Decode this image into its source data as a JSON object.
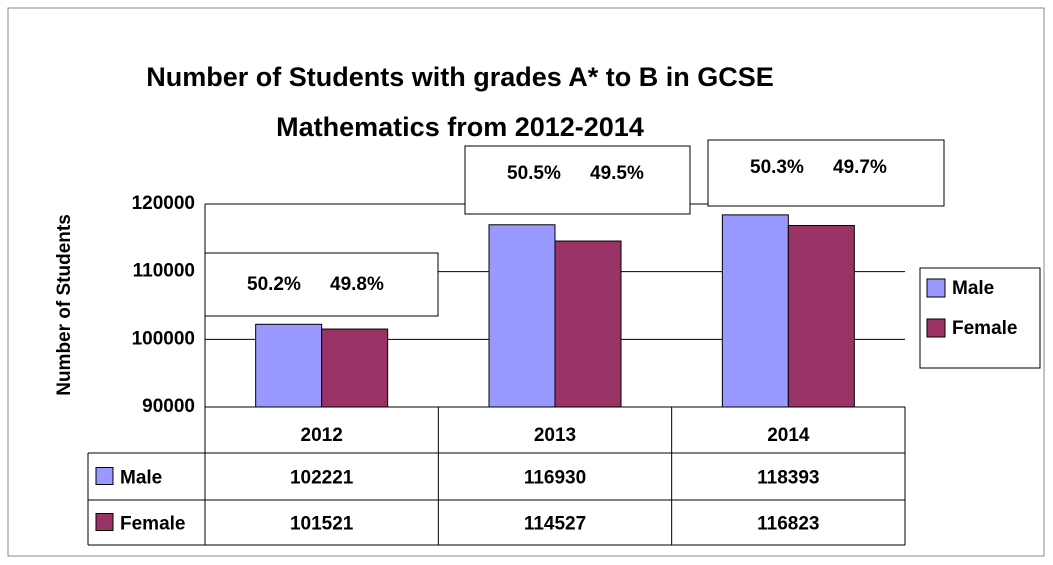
{
  "chart_data": {
    "type": "bar",
    "title": "Number of Students with grades A* to B in GCSE Mathematics from 2012-2014",
    "y_label": "Number of Students",
    "categories": [
      "2012",
      "2013",
      "2014"
    ],
    "series": [
      {
        "name": "Male",
        "color": "#9999ff",
        "values": [
          102221,
          116930,
          118393
        ]
      },
      {
        "name": "Female",
        "color": "#993366",
        "values": [
          101521,
          114527,
          116823
        ]
      }
    ],
    "ylim": [
      90000,
      120000
    ],
    "yticks": [
      90000,
      100000,
      110000,
      120000
    ],
    "grid": true,
    "legend": "right",
    "annotations": [
      [
        "50.2%",
        "49.8%"
      ],
      [
        "50.5%",
        "49.5%"
      ],
      [
        "50.3%",
        "49.7%"
      ]
    ]
  }
}
